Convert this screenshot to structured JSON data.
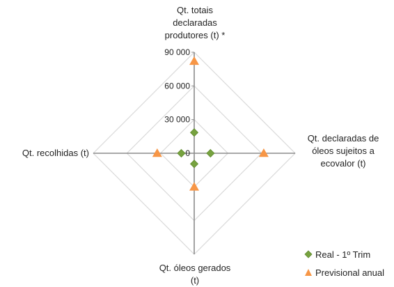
{
  "chart_data": {
    "type": "radar",
    "axes": [
      "Qt. totais declaradas produtores (t) *",
      "Qt. declaradas de óleos sujeitos a ecovalor (t)",
      "Qt. óleos gerados (t)",
      "Qt. recolhidas (t)"
    ],
    "axis_label_lines": [
      [
        "Qt. totais",
        "declaradas",
        "produtores (t) *"
      ],
      [
        "Qt. declaradas de",
        "óleos sujeitos a",
        "ecovalor (t)"
      ],
      [
        "Qt. óleos gerados",
        "(t)"
      ],
      [
        "Qt. recolhidas (t)"
      ]
    ],
    "rmax": 90000,
    "ticks": [
      0,
      30000,
      60000,
      90000
    ],
    "tick_labels": [
      "0",
      "30 000",
      "60 000",
      "90 000"
    ],
    "grid": true,
    "legend_position": "bottom-right",
    "series": [
      {
        "name": "Real - 1º Trim",
        "marker": "diamond",
        "color": "#77a23f",
        "values": [
          18500,
          14500,
          9500,
          11500
        ]
      },
      {
        "name": "Previsional anual",
        "marker": "triangle",
        "color": "#f79646",
        "values": [
          82000,
          62000,
          30000,
          33000
        ]
      }
    ]
  }
}
